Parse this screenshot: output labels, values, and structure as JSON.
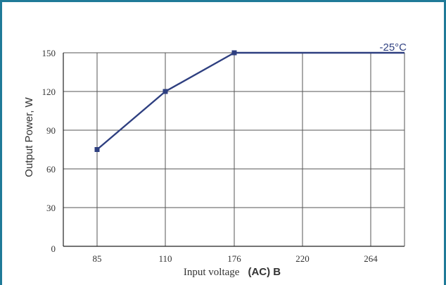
{
  "chart_data": {
    "type": "line",
    "x_categories": [
      "85",
      "110",
      "176",
      "220",
      "264"
    ],
    "y_ticks": [
      0,
      30,
      60,
      90,
      120,
      150
    ],
    "ylim": [
      0,
      150
    ],
    "ylabel": "Output Power, W",
    "xlabel": "Input voltage",
    "xlabel_bold": "(AC) B",
    "grid": true,
    "series": [
      {
        "name": "-25°C",
        "points": [
          {
            "x": "85",
            "y": 75
          },
          {
            "x": "110",
            "y": 120
          },
          {
            "x": "176",
            "y": 150
          },
          {
            "x": "end",
            "y": 150
          }
        ],
        "color": "#2e3f80"
      }
    ],
    "colors": {
      "frame": "#1f7a98",
      "grid": "#555555",
      "line": "#2e3f80"
    }
  }
}
